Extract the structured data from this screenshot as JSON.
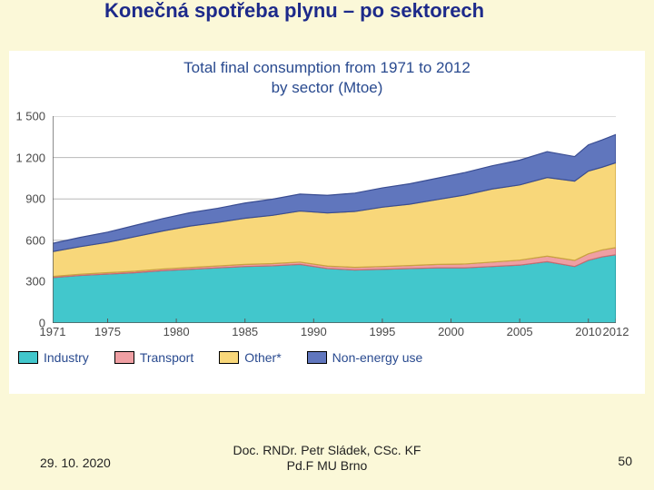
{
  "page": {
    "background_color": "#fbf8d8",
    "title_color": "#1d2a8a",
    "title_fontsize": 22
  },
  "slide": {
    "title": "Konečná spotřeba plynu – po sektorech"
  },
  "chart": {
    "type": "area",
    "title_line1": "Total final consumption from 1971 to 2012",
    "title_line2": "by sector (Mtoe)",
    "title_color": "#294a8f",
    "title_fontsize": 17,
    "background_color": "#ffffff",
    "plot_bg": "#ffffff",
    "axis_color": "#5a5a5a",
    "grid_color": "#b8b8b8",
    "tick_label_color": "#4a4a4a",
    "x": {
      "min": 1971,
      "max": 2012,
      "ticks": [
        1971,
        1975,
        1980,
        1985,
        1990,
        1995,
        2000,
        2005,
        2010,
        2012
      ]
    },
    "y": {
      "min": 0,
      "max": 1500,
      "ticks": [
        0,
        300,
        600,
        900,
        1200,
        1500
      ]
    },
    "years": [
      1971,
      1973,
      1975,
      1977,
      1979,
      1981,
      1983,
      1985,
      1987,
      1989,
      1991,
      1993,
      1995,
      1997,
      1999,
      2001,
      2003,
      2005,
      2007,
      2009,
      2010,
      2011,
      2012
    ],
    "series": [
      {
        "key": "industry",
        "label": "Industry",
        "color": "#42c7cc",
        "stroke": "#168f97",
        "values": [
          330,
          345,
          355,
          365,
          380,
          390,
          400,
          410,
          415,
          425,
          395,
          385,
          390,
          395,
          400,
          400,
          410,
          420,
          445,
          410,
          455,
          480,
          495
        ]
      },
      {
        "key": "transport",
        "label": "Transport",
        "color": "#ef9fa3",
        "stroke": "#c86a70",
        "values": [
          8,
          9,
          10,
          11,
          12,
          13,
          14,
          15,
          16,
          17,
          18,
          19,
          20,
          22,
          25,
          28,
          32,
          36,
          40,
          44,
          47,
          50,
          52
        ]
      },
      {
        "key": "other",
        "label": "Other*",
        "color": "#f8d77a",
        "stroke": "#c9a43f",
        "values": [
          180,
          200,
          220,
          250,
          275,
          300,
          315,
          335,
          350,
          370,
          385,
          405,
          430,
          445,
          470,
          500,
          530,
          545,
          570,
          575,
          600,
          600,
          615
        ]
      },
      {
        "key": "nonenergy",
        "label": "Non-energy use",
        "color": "#6076bd",
        "stroke": "#3a4d92",
        "values": [
          60,
          67,
          74,
          82,
          90,
          97,
          103,
          110,
          117,
          123,
          128,
          133,
          140,
          148,
          155,
          163,
          168,
          180,
          188,
          178,
          190,
          198,
          205
        ]
      }
    ],
    "legend": {
      "order": [
        "industry",
        "transport",
        "other",
        "nonenergy"
      ],
      "font_color": "#294a8f",
      "font_size": 14,
      "swatch_border": "#000000"
    }
  },
  "footer": {
    "date": "29. 10. 2020",
    "author_line1": "Doc. RNDr. Petr Sládek, CSc. KF",
    "author_line2": "Pd.F MU Brno",
    "page_number": "50",
    "text_color": "#222222"
  }
}
